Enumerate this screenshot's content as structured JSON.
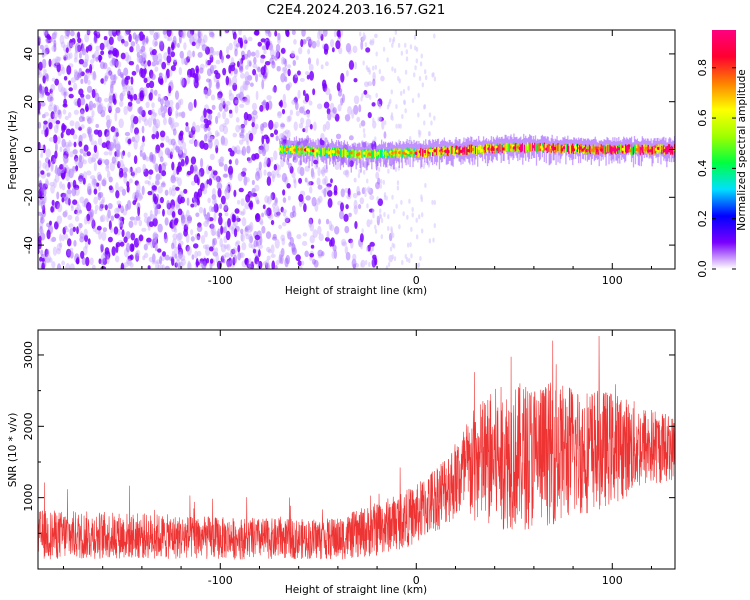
{
  "title": "C2E4.2024.203.16.57.G21",
  "chart_data": [
    {
      "type": "heatmap",
      "xlabel": "Height of straight line (km)",
      "ylabel": "Frequency (Hz)",
      "xlim": [
        -193,
        132
      ],
      "ylim": [
        -50,
        50
      ],
      "x_ticks": [
        -100,
        0,
        100
      ],
      "x_tick_labels": [
        "-100",
        "0",
        "100"
      ],
      "y_ticks": [
        -40,
        -20,
        0,
        20,
        40
      ],
      "y_tick_labels": [
        "-40",
        "-20",
        "0",
        "20",
        "40"
      ],
      "noise_region_km": [
        -193,
        -20
      ],
      "signal_band": {
        "x_start_km": -70,
        "x_end_km": 132,
        "center_hz": [
          [
            -70,
            0.5
          ],
          [
            -50,
            -1
          ],
          [
            -30,
            -2
          ],
          [
            -10,
            -1.5
          ],
          [
            10,
            -1
          ],
          [
            30,
            0
          ],
          [
            50,
            1
          ],
          [
            70,
            0.5
          ],
          [
            90,
            0
          ],
          [
            110,
            0
          ],
          [
            132,
            0
          ]
        ],
        "halfwidth_hz": 3
      },
      "colorbar": {
        "label": "Normalized spectral amplitude",
        "ticks": [
          0.0,
          0.2,
          0.4,
          0.6,
          0.8
        ],
        "tick_labels": [
          "0.0",
          "0.2",
          "0.4",
          "0.6",
          "0.8"
        ],
        "range": [
          0,
          0.95
        ],
        "colors": [
          "#ffffff",
          "#7a00ff",
          "#0000ff",
          "#00e0ff",
          "#00ff40",
          "#a0ff00",
          "#ffff00",
          "#ff8000",
          "#ff0030",
          "#ff0080"
        ]
      }
    },
    {
      "type": "line",
      "xlabel": "Height of straight line (km)",
      "ylabel": "SNR (10 * v/v)",
      "xlim": [
        -193,
        132
      ],
      "ylim": [
        0,
        3350
      ],
      "x_ticks": [
        -100,
        0,
        100
      ],
      "x_tick_labels": [
        "-100",
        "0",
        "100"
      ],
      "y_ticks": [
        1000,
        2000,
        3000
      ],
      "y_tick_labels": [
        "1000",
        "2000",
        "3000"
      ],
      "color": "#ee3333",
      "envelope": {
        "x": [
          -193,
          -150,
          -100,
          -60,
          -40,
          -20,
          0,
          10,
          20,
          28,
          40,
          60,
          80,
          100,
          115,
          132
        ],
        "mean": [
          480,
          470,
          430,
          420,
          420,
          560,
          760,
          1000,
          1250,
          1420,
          1550,
          1600,
          1650,
          1700,
          1720,
          1700
        ],
        "spread": [
          350,
          330,
          300,
          280,
          300,
          380,
          420,
          480,
          550,
          800,
          1000,
          1050,
          950,
          800,
          600,
          450
        ]
      }
    }
  ]
}
